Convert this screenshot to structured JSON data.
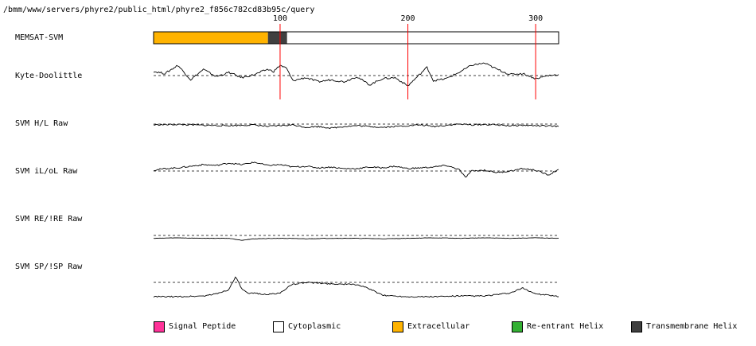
{
  "file_path": "/bmm/www/servers/phyre2/public_html/phyre2_f856c782cd83b95c/query",
  "ticks": [
    100,
    200,
    300
  ],
  "chart_data": {
    "type": "line",
    "sequence_length": 318,
    "x_range": [
      1,
      318
    ],
    "tracks": [
      {
        "label": "MEMSAT-SVM",
        "kind": "topology",
        "segments": [
          {
            "start": 1,
            "end": 90,
            "state": "extracellular"
          },
          {
            "start": 91,
            "end": 105,
            "state": "transmembrane"
          },
          {
            "start": 106,
            "end": 318,
            "state": "cytoplasmic"
          }
        ]
      },
      {
        "label": "Kyte-Doolittle",
        "kind": "profile",
        "threshold": 0,
        "x": [
          1,
          10,
          20,
          30,
          40,
          50,
          60,
          70,
          80,
          90,
          95,
          100,
          105,
          110,
          120,
          130,
          140,
          150,
          160,
          170,
          180,
          190,
          200,
          210,
          215,
          220,
          230,
          240,
          250,
          260,
          270,
          280,
          290,
          300,
          310,
          318
        ],
        "y": [
          0.4,
          0.2,
          1.0,
          -0.4,
          0.6,
          -0.1,
          0.3,
          -0.2,
          0.1,
          0.6,
          0.4,
          1.0,
          0.7,
          -0.5,
          -0.2,
          -0.6,
          -0.4,
          -0.6,
          -0.1,
          -0.9,
          -0.3,
          -0.2,
          -1.0,
          0.2,
          0.8,
          -0.5,
          -0.3,
          0.3,
          1.0,
          1.2,
          0.6,
          0.1,
          0.2,
          -0.3,
          0.0,
          0.1
        ]
      },
      {
        "label": "SVM H/L Raw",
        "kind": "profile",
        "threshold": 0,
        "x": [
          1,
          20,
          40,
          60,
          80,
          90,
          100,
          110,
          120,
          130,
          140,
          150,
          160,
          170,
          180,
          190,
          200,
          210,
          220,
          230,
          240,
          250,
          260,
          270,
          280,
          290,
          300,
          310,
          318
        ],
        "y": [
          -0.1,
          -0.05,
          -0.15,
          -0.2,
          -0.1,
          -0.3,
          -0.2,
          -0.1,
          -0.4,
          -0.3,
          -0.5,
          -0.3,
          -0.2,
          -0.3,
          -0.4,
          -0.3,
          -0.2,
          -0.1,
          -0.3,
          -0.15,
          0.0,
          -0.1,
          -0.05,
          -0.1,
          -0.2,
          -0.15,
          -0.2,
          -0.25,
          -0.3
        ]
      },
      {
        "label": "SVM iL/oL Raw",
        "kind": "profile",
        "threshold": 0,
        "x": [
          1,
          10,
          20,
          30,
          40,
          50,
          60,
          70,
          80,
          90,
          100,
          110,
          120,
          130,
          140,
          150,
          160,
          170,
          180,
          190,
          200,
          210,
          220,
          230,
          240,
          245,
          250,
          260,
          270,
          280,
          290,
          300,
          310,
          318
        ],
        "y": [
          0.1,
          0.3,
          0.4,
          0.6,
          0.8,
          0.7,
          1.0,
          0.8,
          1.1,
          0.7,
          0.8,
          0.5,
          0.6,
          0.4,
          0.5,
          0.3,
          0.3,
          0.5,
          0.4,
          0.6,
          0.3,
          0.4,
          0.5,
          0.7,
          0.2,
          -0.8,
          0.0,
          0.1,
          -0.2,
          0.0,
          0.3,
          0.1,
          -0.5,
          0.2
        ]
      },
      {
        "label": "SVM RE/!RE Raw",
        "kind": "profile",
        "threshold": 0,
        "x": [
          1,
          20,
          40,
          60,
          70,
          80,
          100,
          120,
          140,
          160,
          180,
          200,
          220,
          240,
          260,
          280,
          300,
          318
        ],
        "y": [
          -0.6,
          -0.5,
          -0.6,
          -0.6,
          -1.0,
          -0.7,
          -0.6,
          -0.7,
          -0.6,
          -0.6,
          -0.7,
          -0.6,
          -0.5,
          -0.6,
          -0.5,
          -0.6,
          -0.5,
          -0.6
        ]
      },
      {
        "label": "SVM SP/!SP Raw",
        "kind": "profile",
        "threshold": 0,
        "x": [
          1,
          20,
          40,
          50,
          60,
          65,
          70,
          75,
          80,
          90,
          100,
          105,
          110,
          120,
          140,
          160,
          170,
          180,
          190,
          200,
          220,
          240,
          260,
          280,
          290,
          300,
          310,
          318
        ],
        "y": [
          -2.0,
          -2.0,
          -1.9,
          -1.6,
          -1.0,
          0.8,
          -0.9,
          -1.6,
          -1.5,
          -1.7,
          -1.5,
          -0.8,
          -0.3,
          0.0,
          -0.2,
          -0.3,
          -0.9,
          -1.8,
          -1.9,
          -2.0,
          -2.0,
          -1.9,
          -1.9,
          -1.5,
          -0.8,
          -1.6,
          -1.8,
          -2.0
        ]
      }
    ]
  },
  "legend": [
    {
      "label": "Signal Peptide",
      "color": "#ff3399"
    },
    {
      "label": "Cytoplasmic",
      "color": "#ffffff"
    },
    {
      "label": "Extracellular",
      "color": "#ffb300"
    },
    {
      "label": "Re-entrant Helix",
      "color": "#33b033"
    },
    {
      "label": "Transmembrane Helix",
      "color": "#404040"
    }
  ],
  "colors": {
    "extracellular": "#ffb300",
    "transmembrane": "#404040",
    "cytoplasmic": "#ffffff",
    "marker_line": "#ff0000"
  }
}
